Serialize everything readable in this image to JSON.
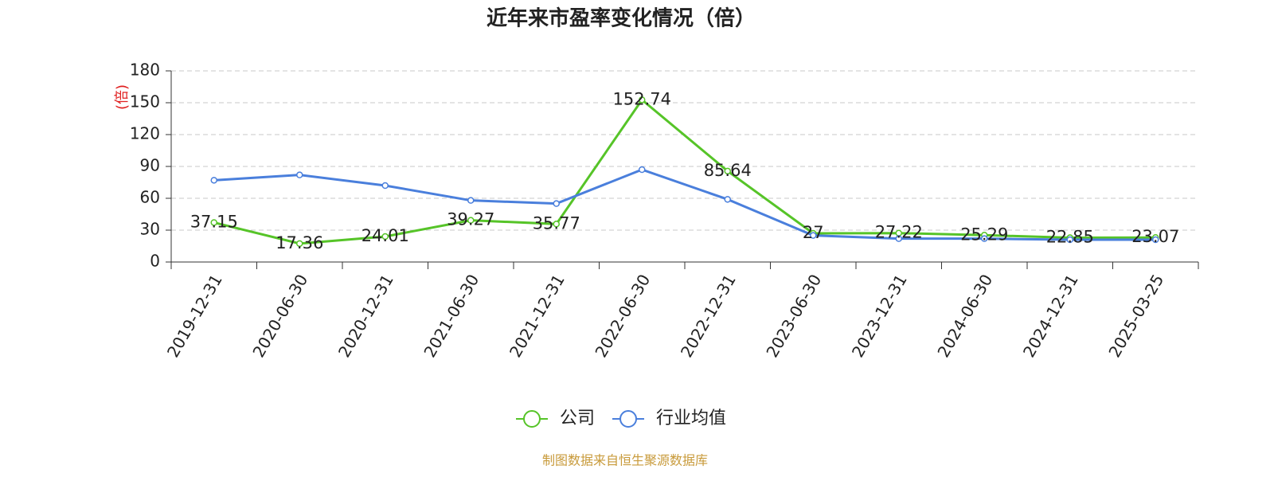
{
  "chart_data": {
    "type": "line",
    "title": "近年来市盈率变化情况（倍）",
    "y_label": "(倍)",
    "source": "制图数据来自恒生聚源数据库",
    "categories": [
      "2019-12-31",
      "2020-06-30",
      "2020-12-31",
      "2021-06-30",
      "2021-12-31",
      "2022-06-30",
      "2022-12-31",
      "2023-06-30",
      "2023-12-31",
      "2024-06-30",
      "2024-12-31",
      "2025-03-25"
    ],
    "series": [
      {
        "name": "公司",
        "color": "#56c428",
        "values": [
          37.15,
          17.36,
          24.01,
          39.27,
          35.77,
          152.74,
          85.64,
          27,
          27.22,
          25.29,
          22.85,
          23.07
        ]
      },
      {
        "name": "行业均值",
        "color": "#4a7fdc",
        "values": [
          77,
          82,
          72,
          58,
          55,
          87,
          59,
          25,
          22,
          22,
          21,
          21
        ]
      }
    ],
    "ylim": [
      0,
      180
    ],
    "yticks": [
      0,
      30,
      60,
      90,
      120,
      150,
      180
    ],
    "grid": true
  }
}
